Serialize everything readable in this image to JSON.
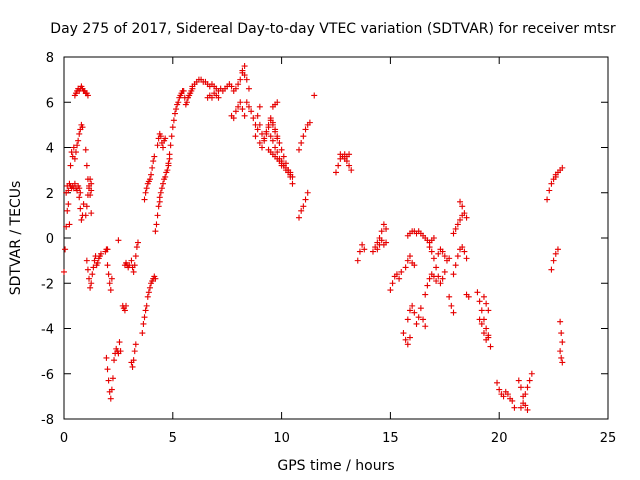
{
  "chart_data": {
    "type": "scatter",
    "title": "Day 275 of 2017, Sidereal Day-to-day VTEC variation (SDTVAR) for receiver mtsr",
    "xlabel": "GPS time / hours",
    "ylabel": "SDTVAR / TECUs",
    "xlim": [
      0,
      25
    ],
    "ylim": [
      -8,
      8
    ],
    "xticks": [
      0,
      5,
      10,
      15,
      20,
      25
    ],
    "xtick_labels": [
      "0",
      "5",
      "10",
      "15",
      "20",
      "25"
    ],
    "yticks": [
      -8,
      -6,
      -4,
      -2,
      0,
      2,
      4,
      6,
      8
    ],
    "ytick_labels": [
      "-8",
      "-6",
      "-4",
      "-2",
      "0",
      "2",
      "4",
      "6",
      "8"
    ],
    "grid": false,
    "marker": "+",
    "color": "#e60000",
    "segments": [
      {
        "x": [
          0.0,
          0.05,
          0.1,
          0.15,
          0.2,
          0.25
        ],
        "y": [
          -1.5,
          -0.5,
          0.5,
          1.2,
          1.5,
          0.6
        ]
      },
      {
        "x": [
          0.1,
          0.15,
          0.2,
          0.25,
          0.3,
          0.35,
          0.4,
          0.45,
          0.5,
          0.55,
          0.6,
          0.65,
          0.7,
          0.75
        ],
        "y": [
          2.0,
          2.3,
          2.1,
          2.4,
          2.3,
          2.2,
          2.3,
          2.2,
          2.4,
          2.2,
          2.1,
          2.3,
          2.2,
          2.0
        ]
      },
      {
        "x": [
          0.3,
          0.35,
          0.4,
          0.45,
          0.5
        ],
        "y": [
          3.2,
          3.8,
          3.6,
          4.0,
          3.5
        ]
      },
      {
        "x": [
          0.5,
          0.55,
          0.6,
          0.65,
          0.7,
          0.75,
          0.8,
          0.85,
          0.9,
          0.95,
          1.0,
          1.05,
          1.1
        ],
        "y": [
          6.3,
          6.4,
          6.5,
          6.6,
          6.5,
          6.6,
          6.7,
          6.6,
          6.5,
          6.5,
          6.4,
          6.4,
          6.3
        ]
      },
      {
        "x": [
          0.55,
          0.6,
          0.65,
          0.7,
          0.75,
          0.8,
          0.85
        ],
        "y": [
          3.8,
          4.1,
          4.3,
          4.6,
          4.8,
          5.0,
          4.9
        ]
      },
      {
        "x": [
          0.7,
          0.75,
          0.8,
          0.85,
          0.9
        ],
        "y": [
          1.8,
          1.3,
          0.8,
          1.0,
          1.5
        ]
      },
      {
        "x": [
          1.0,
          1.05,
          1.1,
          1.15,
          1.2,
          1.25
        ],
        "y": [
          3.9,
          3.2,
          2.6,
          2.2,
          1.9,
          2.1
        ]
      },
      {
        "x": [
          1.0,
          1.05,
          1.1,
          1.15,
          1.2,
          1.25
        ],
        "y": [
          1.0,
          1.4,
          1.9,
          2.3,
          2.6,
          2.4
        ]
      },
      {
        "x": [
          1.05,
          1.1,
          1.15,
          1.2,
          1.25,
          1.3,
          1.35,
          1.4,
          1.45
        ],
        "y": [
          -1.0,
          -1.4,
          -1.8,
          -2.2,
          -2.0,
          -1.6,
          -1.3,
          -1.0,
          -0.8
        ]
      },
      {
        "x": [
          1.25
        ],
        "y": [
          1.1
        ]
      },
      {
        "x": [
          1.5,
          1.55,
          1.6,
          1.65,
          1.7
        ],
        "y": [
          -1.2,
          -1.1,
          -0.9,
          -0.8,
          -0.7
        ]
      },
      {
        "x": [
          1.9,
          1.95,
          2.0
        ],
        "y": [
          -0.6,
          -0.5,
          -0.5
        ]
      },
      {
        "x": [
          2.0,
          2.05,
          2.1,
          2.15,
          2.2
        ],
        "y": [
          -1.2,
          -1.6,
          -2.0,
          -2.3,
          -1.8
        ]
      },
      {
        "x": [
          1.95,
          2.0,
          2.05,
          2.1,
          2.15,
          2.2,
          2.25
        ],
        "y": [
          -5.3,
          -5.8,
          -6.3,
          -6.8,
          -7.1,
          -6.7,
          -6.2
        ]
      },
      {
        "x": [
          2.3,
          2.35,
          2.4,
          2.45,
          2.5,
          2.55,
          2.6
        ],
        "y": [
          -5.4,
          -5.1,
          -4.9,
          -5.0,
          -5.1,
          -4.6,
          -5.0
        ]
      },
      {
        "x": [
          2.5
        ],
        "y": [
          -0.1
        ]
      },
      {
        "x": [
          2.7,
          2.75,
          2.8,
          2.85
        ],
        "y": [
          -3.0,
          -3.1,
          -3.2,
          -3.0
        ]
      },
      {
        "x": [
          2.8,
          2.85,
          2.9,
          2.95,
          3.0
        ],
        "y": [
          -1.2,
          -1.1,
          -1.2,
          -1.3,
          -1.2
        ]
      },
      {
        "x": [
          3.1,
          3.15,
          3.2,
          3.25,
          3.3
        ],
        "y": [
          -5.5,
          -5.7,
          -5.4,
          -5.0,
          -4.7
        ]
      },
      {
        "x": [
          3.1,
          3.15,
          3.2,
          3.25,
          3.3,
          3.35,
          3.4
        ],
        "y": [
          -1.0,
          -1.3,
          -1.5,
          -1.2,
          -0.8,
          -0.4,
          -0.2
        ]
      },
      {
        "x": [
          3.6,
          3.65,
          3.7,
          3.75,
          3.8,
          3.85,
          3.9,
          3.95,
          4.0,
          4.05,
          4.1,
          4.15,
          4.2
        ],
        "y": [
          -4.2,
          -3.8,
          -3.5,
          -3.2,
          -3.0,
          -2.6,
          -2.4,
          -2.2,
          -2.0,
          -1.9,
          -1.8,
          -1.7,
          -1.8
        ]
      },
      {
        "x": [
          3.7,
          3.75,
          3.8,
          3.85,
          3.9,
          3.95,
          4.0,
          4.05,
          4.1,
          4.15
        ],
        "y": [
          1.7,
          2.0,
          2.2,
          2.4,
          2.5,
          2.6,
          2.8,
          3.1,
          3.4,
          3.6
        ]
      },
      {
        "x": [
          4.2,
          4.25,
          4.3,
          4.35,
          4.4
        ],
        "y": [
          0.3,
          0.6,
          1.0,
          1.4,
          1.8
        ]
      },
      {
        "x": [
          4.3,
          4.35,
          4.4,
          4.45,
          4.5,
          4.55,
          4.6,
          4.65
        ],
        "y": [
          4.1,
          4.4,
          4.6,
          4.5,
          4.2,
          4.0,
          4.3,
          4.4
        ]
      },
      {
        "x": [
          4.4,
          4.45,
          4.5,
          4.55,
          4.6,
          4.65,
          4.7,
          4.75,
          4.8,
          4.85
        ],
        "y": [
          1.6,
          2.0,
          2.2,
          2.4,
          2.6,
          2.7,
          2.9,
          3.0,
          3.2,
          3.5
        ]
      },
      {
        "x": [
          4.8,
          4.85,
          4.9,
          4.95,
          5.0,
          5.05,
          5.1,
          5.15,
          5.2,
          5.25,
          5.3,
          5.35,
          5.4,
          5.45,
          5.5,
          5.55,
          5.6,
          5.65,
          5.7,
          5.75,
          5.8,
          5.85,
          5.9
        ],
        "y": [
          3.3,
          3.7,
          4.1,
          4.5,
          4.9,
          5.2,
          5.5,
          5.7,
          5.9,
          6.0,
          6.2,
          6.3,
          6.4,
          6.5,
          6.5,
          6.2,
          5.9,
          6.0,
          6.2,
          6.3,
          6.4,
          6.5,
          6.6
        ]
      },
      {
        "x": [
          5.9,
          6.0,
          6.1,
          6.2,
          6.3,
          6.4,
          6.5,
          6.6,
          6.7,
          6.8,
          6.9,
          7.0,
          7.1,
          7.2,
          7.3,
          7.4,
          7.5
        ],
        "y": [
          6.7,
          6.8,
          6.9,
          7.0,
          7.0,
          6.9,
          6.9,
          6.8,
          6.7,
          6.8,
          6.7,
          6.6,
          6.5,
          6.6,
          6.5,
          6.6,
          6.7
        ]
      },
      {
        "x": [
          6.6,
          6.7,
          6.8,
          6.9,
          7.0,
          7.1
        ],
        "y": [
          6.2,
          6.3,
          6.2,
          6.4,
          6.3,
          6.2
        ]
      },
      {
        "x": [
          7.6,
          7.7,
          7.8,
          7.9,
          8.0,
          8.1,
          8.2,
          8.3
        ],
        "y": [
          6.8,
          6.7,
          6.5,
          6.6,
          6.8,
          7.0,
          7.3,
          7.6
        ]
      },
      {
        "x": [
          7.7,
          7.8,
          7.9,
          8.0,
          8.1,
          8.2,
          8.3
        ],
        "y": [
          5.4,
          5.3,
          5.6,
          5.8,
          6.0,
          5.7,
          5.4
        ]
      },
      {
        "x": [
          8.2,
          8.3,
          8.4,
          8.5
        ],
        "y": [
          7.4,
          7.2,
          7.0,
          6.6
        ]
      },
      {
        "x": [
          8.4,
          8.5,
          8.6,
          8.7,
          8.8,
          8.9,
          9.0
        ],
        "y": [
          6.0,
          5.8,
          5.6,
          5.3,
          5.0,
          5.4,
          5.8
        ]
      },
      {
        "x": [
          8.8,
          8.9,
          9.0,
          9.1,
          9.2,
          9.3,
          9.4,
          9.5,
          9.6,
          9.7,
          9.8
        ],
        "y": [
          4.5,
          4.8,
          5.0,
          4.6,
          4.3,
          4.6,
          5.0,
          5.3,
          5.1,
          4.7,
          4.4
        ]
      },
      {
        "x": [
          9.0,
          9.1,
          9.2,
          9.3,
          9.4,
          9.5,
          9.6,
          9.7,
          9.8,
          9.9,
          10.0
        ],
        "y": [
          4.2,
          4.0,
          4.4,
          4.7,
          4.9,
          4.5,
          4.3,
          4.0,
          3.8,
          3.5,
          3.2
        ]
      },
      {
        "x": [
          9.4,
          9.5,
          9.6,
          9.7,
          9.8,
          9.9,
          10.0,
          10.1,
          10.2,
          10.3,
          10.4
        ],
        "y": [
          3.9,
          3.8,
          3.7,
          3.6,
          3.5,
          3.4,
          3.3,
          3.2,
          3.1,
          3.0,
          2.9
        ]
      },
      {
        "x": [
          9.5,
          9.6,
          9.7,
          9.8,
          9.9,
          10.0,
          10.1,
          10.2,
          10.3,
          10.4,
          10.5
        ],
        "y": [
          5.2,
          5.0,
          4.8,
          4.5,
          4.2,
          3.9,
          3.6,
          3.3,
          3.0,
          2.7,
          2.4
        ]
      },
      {
        "x": [
          9.6,
          9.7,
          9.8
        ],
        "y": [
          5.8,
          5.9,
          6.0
        ]
      },
      {
        "x": [
          10.0,
          10.1,
          10.2,
          10.3,
          10.4,
          10.5
        ],
        "y": [
          3.4,
          3.2,
          3.0,
          2.9,
          2.8,
          2.7
        ]
      },
      {
        "x": [
          10.8,
          10.9,
          11.0,
          11.1,
          11.2
        ],
        "y": [
          0.9,
          1.2,
          1.4,
          1.7,
          2.0
        ]
      },
      {
        "x": [
          10.8,
          10.9,
          11.0,
          11.1,
          11.2,
          11.3
        ],
        "y": [
          3.9,
          4.2,
          4.5,
          4.8,
          5.0,
          5.1
        ]
      },
      {
        "x": [
          11.5
        ],
        "y": [
          6.3
        ]
      },
      {
        "x": [
          12.5,
          12.6,
          12.7,
          12.8,
          12.9,
          13.0,
          13.1,
          13.2
        ],
        "y": [
          2.9,
          3.2,
          3.5,
          3.6,
          3.5,
          3.4,
          3.2,
          3.0
        ]
      },
      {
        "x": [
          12.7,
          12.8,
          12.9,
          13.0,
          13.1
        ],
        "y": [
          3.7,
          3.6,
          3.7,
          3.6,
          3.7
        ]
      },
      {
        "x": [
          13.5,
          13.6,
          13.7,
          13.8
        ],
        "y": [
          -1.0,
          -0.6,
          -0.3,
          -0.5
        ]
      },
      {
        "x": [
          14.2,
          14.3,
          14.4,
          14.5,
          14.6,
          14.7,
          14.8
        ],
        "y": [
          -0.6,
          -0.4,
          -0.2,
          0.0,
          0.3,
          0.6,
          0.4
        ]
      },
      {
        "x": [
          14.4,
          14.5,
          14.6,
          14.7,
          14.8
        ],
        "y": [
          -0.5,
          -0.3,
          -0.1,
          -0.3,
          -0.2
        ]
      },
      {
        "x": [
          15.0,
          15.1,
          15.2,
          15.3,
          15.4,
          15.5
        ],
        "y": [
          -2.3,
          -2.0,
          -1.7,
          -1.6,
          -1.8,
          -1.5
        ]
      },
      {
        "x": [
          15.6,
          15.7,
          15.8,
          15.9
        ],
        "y": [
          -4.2,
          -4.5,
          -4.7,
          -4.4
        ]
      },
      {
        "x": [
          15.7,
          15.8,
          15.9,
          16.0,
          16.1
        ],
        "y": [
          -1.3,
          -1.0,
          -0.8,
          -1.1,
          -1.2
        ]
      },
      {
        "x": [
          15.8,
          15.9,
          16.0,
          16.1,
          16.2,
          16.3,
          16.4,
          16.5,
          16.6
        ],
        "y": [
          -3.6,
          -3.2,
          -3.0,
          -3.3,
          -3.8,
          -3.5,
          -3.1,
          -3.6,
          -3.9
        ]
      },
      {
        "x": [
          15.8,
          15.9,
          16.0,
          16.1,
          16.2,
          16.3,
          16.4,
          16.5,
          16.6,
          16.7,
          16.8,
          16.9,
          17.0
        ],
        "y": [
          0.1,
          0.2,
          0.3,
          0.3,
          0.2,
          0.3,
          0.2,
          0.1,
          0.0,
          -0.1,
          -0.2,
          -0.1,
          0.0
        ]
      },
      {
        "x": [
          16.6,
          16.7,
          16.8,
          16.9,
          17.0,
          17.1
        ],
        "y": [
          -2.5,
          -2.1,
          -1.8,
          -1.6,
          -1.7,
          -1.9
        ]
      },
      {
        "x": [
          16.8,
          16.9,
          17.0,
          17.1,
          17.2,
          17.3,
          17.4,
          17.5
        ],
        "y": [
          -0.4,
          -0.6,
          -0.9,
          -1.3,
          -1.7,
          -2.0,
          -1.8,
          -1.5
        ]
      },
      {
        "x": [
          17.2,
          17.3,
          17.4,
          17.5,
          17.6,
          17.7
        ],
        "y": [
          -0.7,
          -0.5,
          -0.6,
          -0.8,
          -1.0,
          -0.9
        ]
      },
      {
        "x": [
          17.7,
          17.8,
          17.9
        ],
        "y": [
          -2.6,
          -3.0,
          -3.3
        ]
      },
      {
        "x": [
          17.9,
          18.0,
          18.1,
          18.2,
          18.3,
          18.4,
          18.5
        ],
        "y": [
          -1.6,
          -1.2,
          -0.8,
          -0.5,
          -0.4,
          -0.6,
          -0.9
        ]
      },
      {
        "x": [
          17.9,
          18.0,
          18.1,
          18.2,
          18.3
        ],
        "y": [
          0.2,
          0.4,
          0.6,
          0.8,
          1.0
        ]
      },
      {
        "x": [
          18.2,
          18.3,
          18.4,
          18.5
        ],
        "y": [
          1.6,
          1.4,
          1.1,
          0.9
        ]
      },
      {
        "x": [
          18.5,
          18.6
        ],
        "y": [
          -2.5,
          -2.6
        ]
      },
      {
        "x": [
          19.0,
          19.1,
          19.2,
          19.3,
          19.4,
          19.5,
          19.6
        ],
        "y": [
          -2.4,
          -2.8,
          -3.2,
          -3.6,
          -4.0,
          -4.4,
          -4.8
        ]
      },
      {
        "x": [
          19.1,
          19.2,
          19.3,
          19.4,
          19.5
        ],
        "y": [
          -3.6,
          -3.8,
          -4.2,
          -4.5,
          -4.3
        ]
      },
      {
        "x": [
          19.3,
          19.4,
          19.5
        ],
        "y": [
          -2.6,
          -2.9,
          -3.2
        ]
      },
      {
        "x": [
          19.9,
          20.0,
          20.1,
          20.2,
          20.3,
          20.4,
          20.5
        ],
        "y": [
          -6.4,
          -6.7,
          -6.9,
          -7.0,
          -6.8,
          -6.9,
          -7.1
        ]
      },
      {
        "x": [
          20.6,
          20.7
        ],
        "y": [
          -7.2,
          -7.5
        ]
      },
      {
        "x": [
          20.9,
          21.0,
          21.1,
          21.2,
          21.3
        ],
        "y": [
          -6.3,
          -6.6,
          -7.0,
          -7.4,
          -7.6
        ]
      },
      {
        "x": [
          21.0,
          21.1,
          21.2,
          21.3,
          21.4,
          21.5
        ],
        "y": [
          -7.5,
          -7.3,
          -6.9,
          -6.6,
          -6.3,
          -6.0
        ]
      },
      {
        "x": [
          22.2,
          22.3,
          22.4,
          22.5,
          22.6
        ],
        "y": [
          1.7,
          2.1,
          2.4,
          2.6,
          2.7
        ]
      },
      {
        "x": [
          22.4,
          22.5,
          22.6,
          22.7
        ],
        "y": [
          -1.4,
          -1.0,
          -0.7,
          -0.5
        ]
      },
      {
        "x": [
          22.6,
          22.7,
          22.8,
          22.9
        ],
        "y": [
          2.8,
          2.9,
          3.0,
          3.1
        ]
      },
      {
        "x": [
          22.8,
          22.85,
          22.9
        ],
        "y": [
          -3.7,
          -4.2,
          -4.6
        ]
      },
      {
        "x": [
          22.8,
          22.85,
          22.9
        ],
        "y": [
          -5.0,
          -5.3,
          -5.5
        ]
      }
    ]
  }
}
